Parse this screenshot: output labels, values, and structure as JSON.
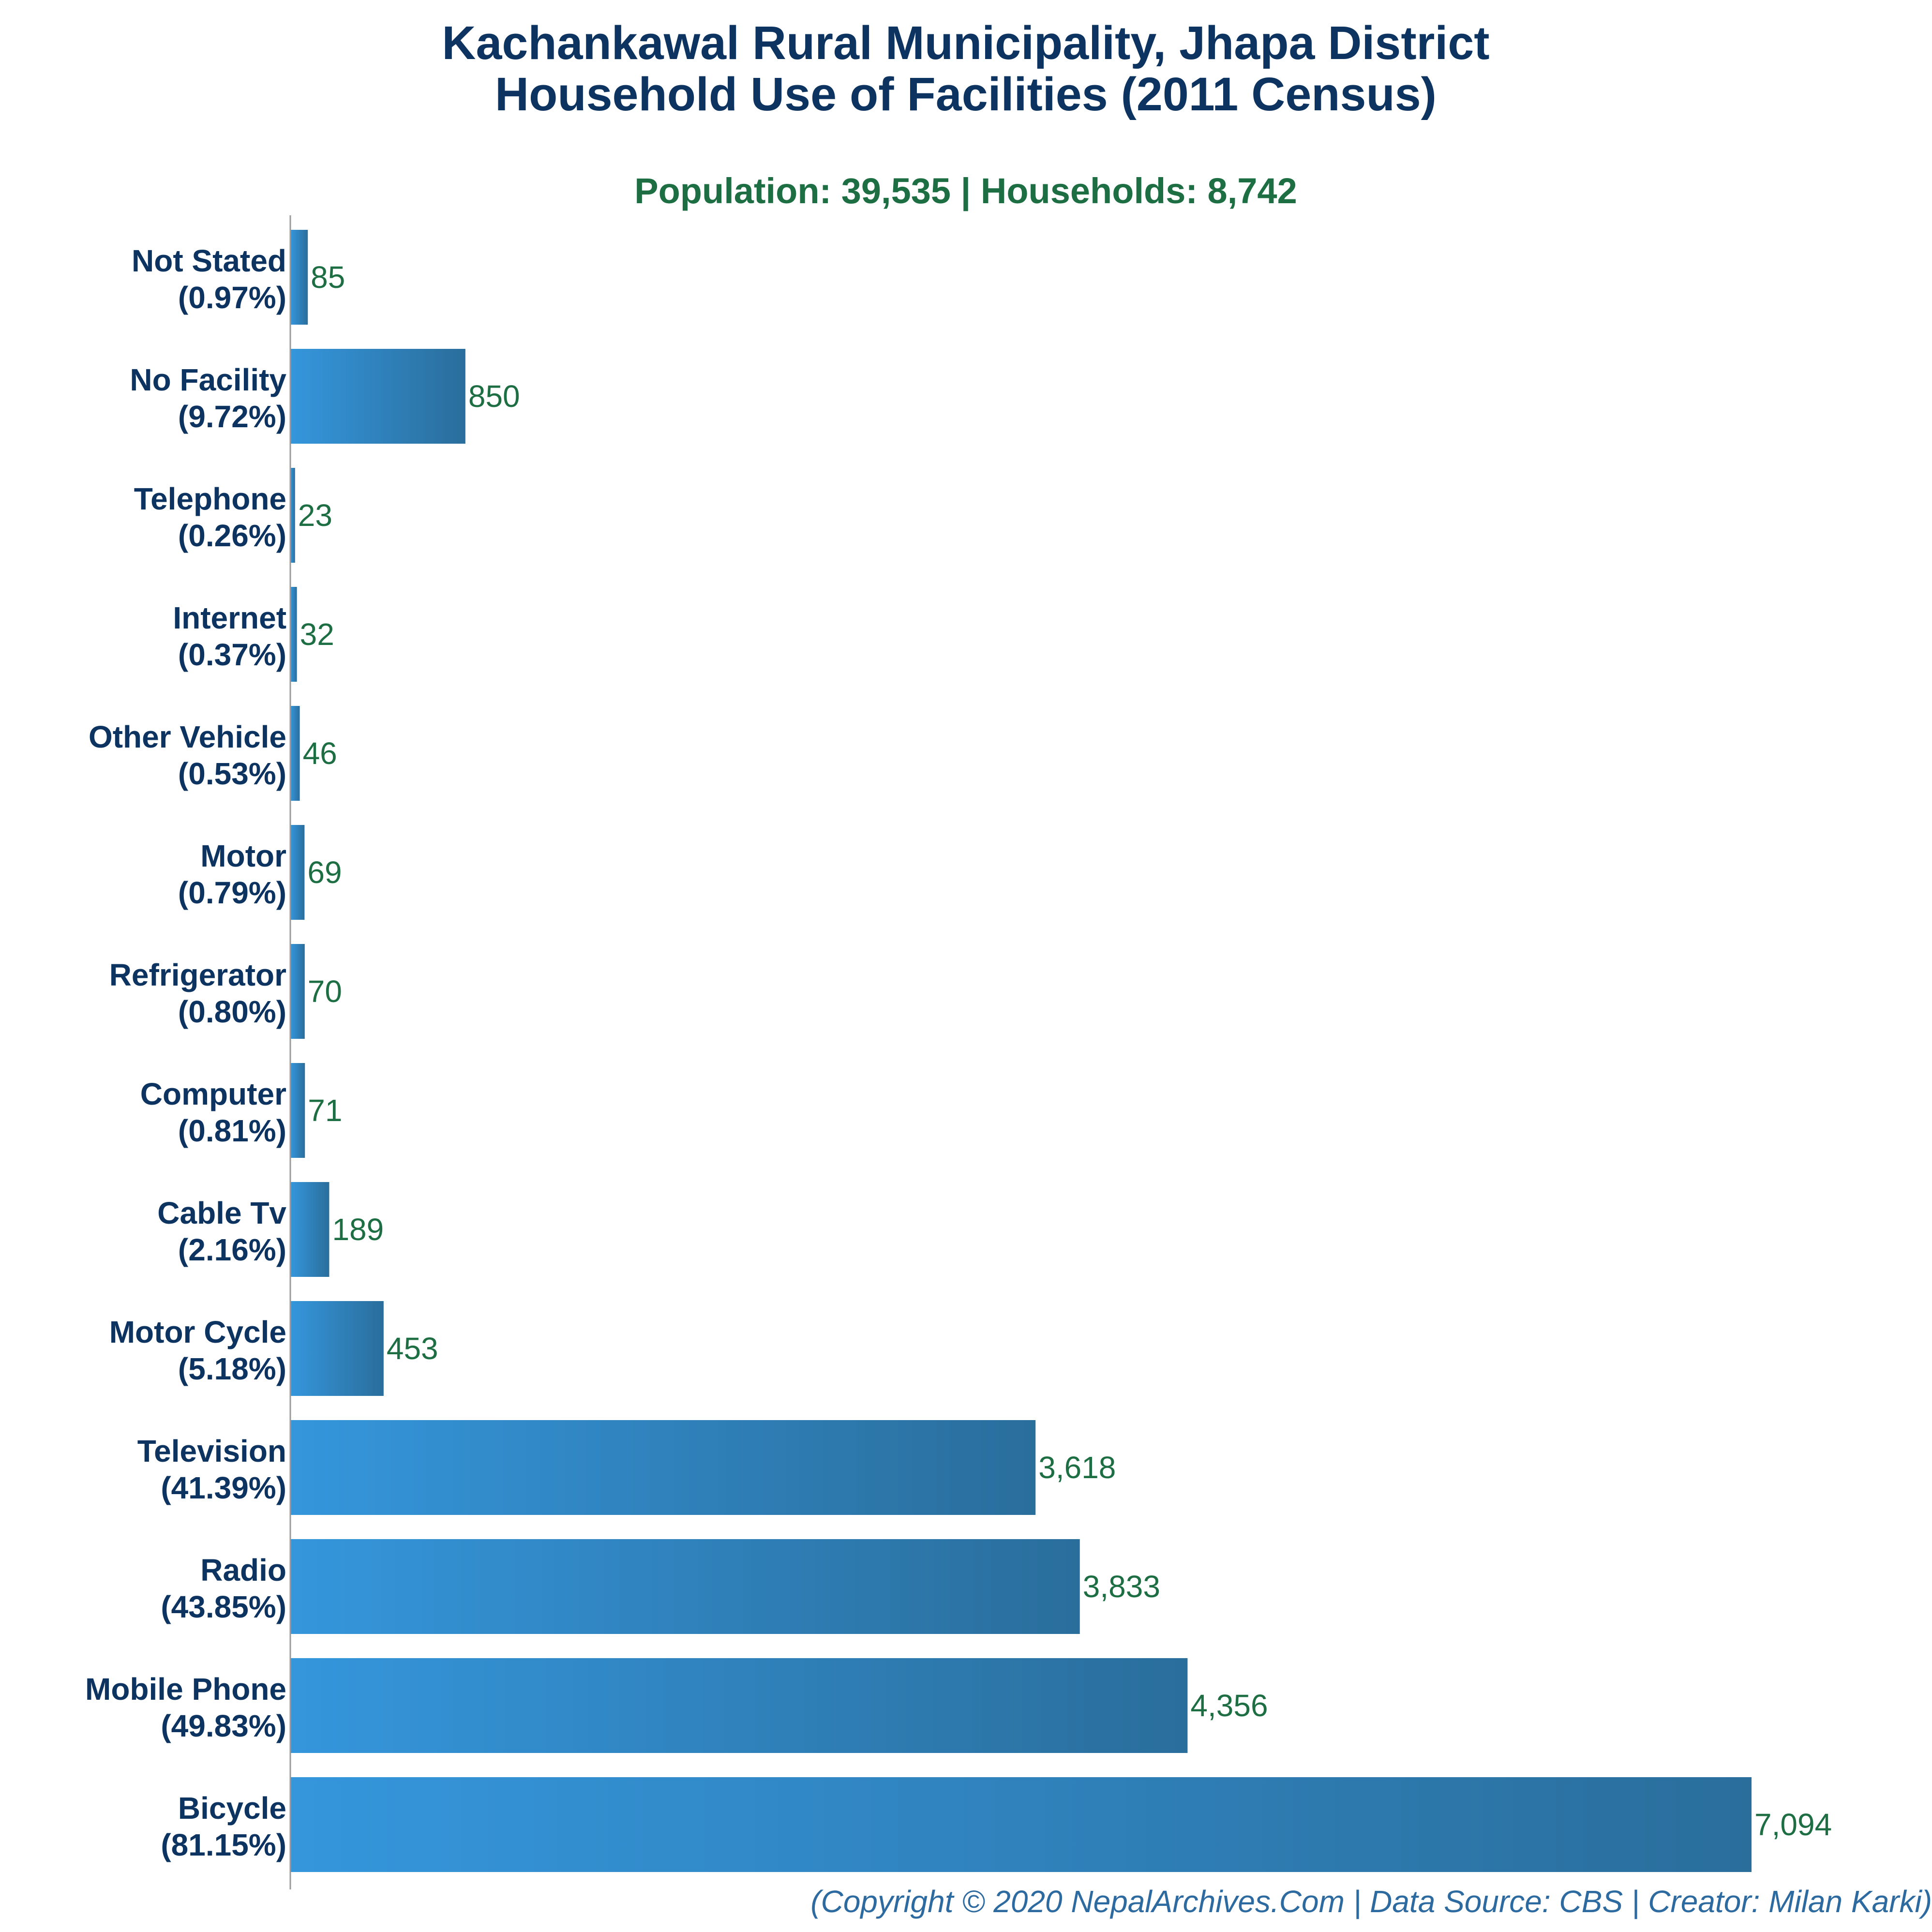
{
  "chart_data": {
    "type": "bar",
    "orientation": "horizontal",
    "title": "Kachankawal Rural Municipality, Jhapa District",
    "title_line2": "Household Use of Facilities (2011 Census)",
    "subtitle": "Population: 39,535 | Households: 8,742",
    "credit": "(Copyright © 2020 NepalArchives.Com | Data Source: CBS | Creator: Milan Karki)",
    "xlabel": "",
    "ylabel": "",
    "grid": false,
    "legend": "none",
    "colors": {
      "bar_start": "#3596dc",
      "bar_end": "#2a6e9c",
      "title": "#0d3461",
      "subtitle": "#1d6e43",
      "value_label": "#1d6e43",
      "credit": "#2d6a9f",
      "axis": "#9a9a9a"
    },
    "categories": [
      {
        "name": "Not Stated",
        "pct": "(0.97%)"
      },
      {
        "name": "No Facility",
        "pct": "(9.72%)"
      },
      {
        "name": "Telephone",
        "pct": "(0.26%)"
      },
      {
        "name": "Internet",
        "pct": "(0.37%)"
      },
      {
        "name": "Other Vehicle",
        "pct": "(0.53%)"
      },
      {
        "name": "Motor",
        "pct": "(0.79%)"
      },
      {
        "name": "Refrigerator",
        "pct": "(0.80%)"
      },
      {
        "name": "Computer",
        "pct": "(0.81%)"
      },
      {
        "name": "Cable Tv",
        "pct": "(2.16%)"
      },
      {
        "name": "Motor Cycle",
        "pct": "(5.18%)"
      },
      {
        "name": "Television",
        "pct": "(41.39%)"
      },
      {
        "name": "Radio",
        "pct": "(43.85%)"
      },
      {
        "name": "Mobile Phone",
        "pct": "(49.83%)"
      },
      {
        "name": "Bicycle",
        "pct": "(81.15%)"
      }
    ],
    "values": [
      85,
      850,
      23,
      32,
      46,
      69,
      70,
      71,
      189,
      453,
      3618,
      3833,
      4356,
      7094
    ],
    "value_labels": [
      "85",
      "850",
      "23",
      "32",
      "46",
      "69",
      "70",
      "71",
      "189",
      "453",
      "3,618",
      "3,833",
      "4,356",
      "7,094"
    ],
    "xlim": [
      0,
      7094
    ]
  }
}
